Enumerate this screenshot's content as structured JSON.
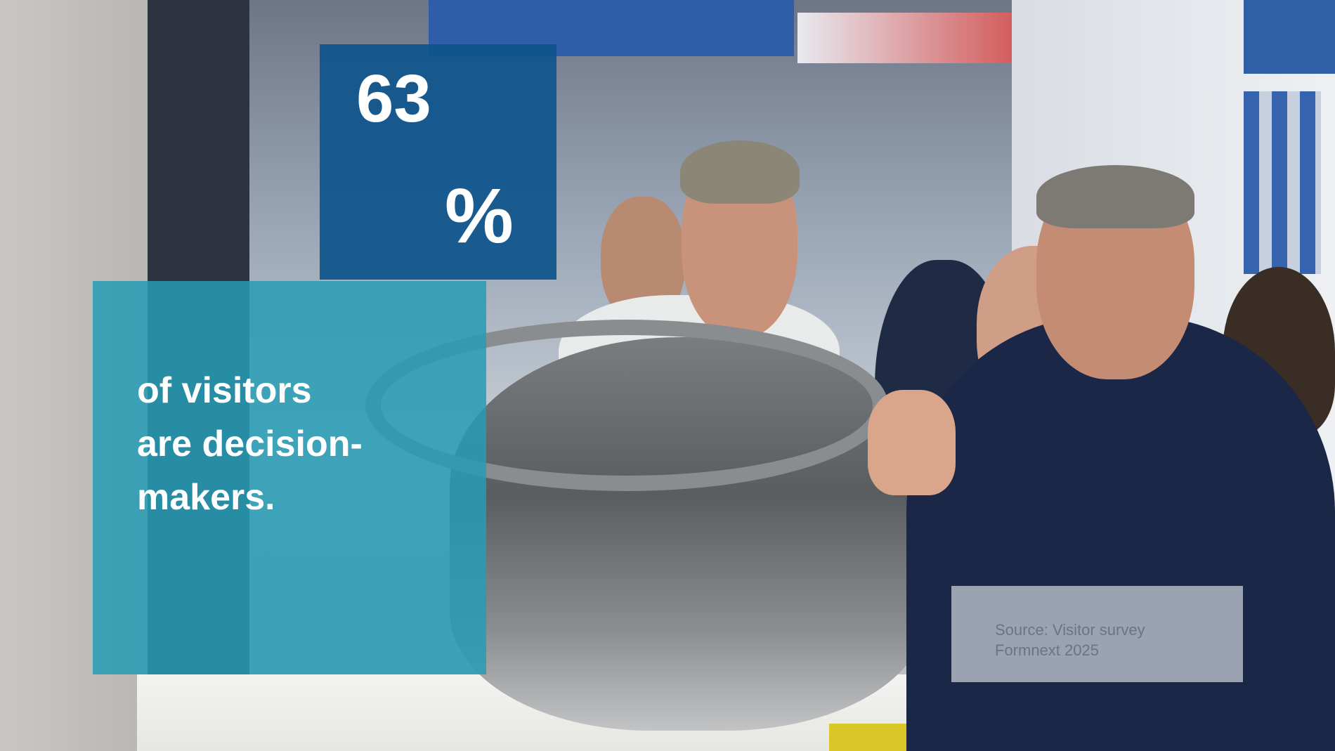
{
  "statistic": {
    "number": "63",
    "percent_sign": "%"
  },
  "caption": {
    "lines": [
      "of visitors",
      "are decision-",
      "makers."
    ]
  },
  "source": {
    "lines": [
      "Source: Visitor survey",
      "Formnext 2025"
    ]
  },
  "colors": {
    "stat_box": "#0e558c",
    "caption_box": "#279cb5",
    "source_box": "#cdd4de",
    "text_light": "#ffffff",
    "source_text": "#6c747f"
  }
}
